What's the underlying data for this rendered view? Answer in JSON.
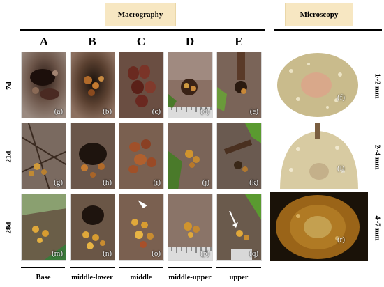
{
  "headers": {
    "macro": "Macrography",
    "micro": "Microscopy"
  },
  "columns": [
    {
      "letter": "A",
      "position": "Base"
    },
    {
      "letter": "B",
      "position": "middle-lower"
    },
    {
      "letter": "C",
      "position": "middle"
    },
    {
      "letter": "D",
      "position": "middle-upper"
    },
    {
      "letter": "E",
      "position": "upper"
    }
  ],
  "rows": [
    {
      "day": "7d",
      "size": "1~2 mm",
      "labels": [
        "(a)",
        "(b)",
        "(c)",
        "(d)",
        "(e)"
      ],
      "micro_label": "(f)"
    },
    {
      "day": "21d",
      "size": "2~4 mm",
      "labels": [
        "(g)",
        "(h)",
        "(i)",
        "(j)",
        "(k)"
      ],
      "micro_label": "(l)"
    },
    {
      "day": "28d",
      "size": "4~7 mm",
      "labels": [
        "(m)",
        "(n)",
        "(o)",
        "(p)",
        "(q)"
      ],
      "micro_label": "(r)"
    }
  ]
}
